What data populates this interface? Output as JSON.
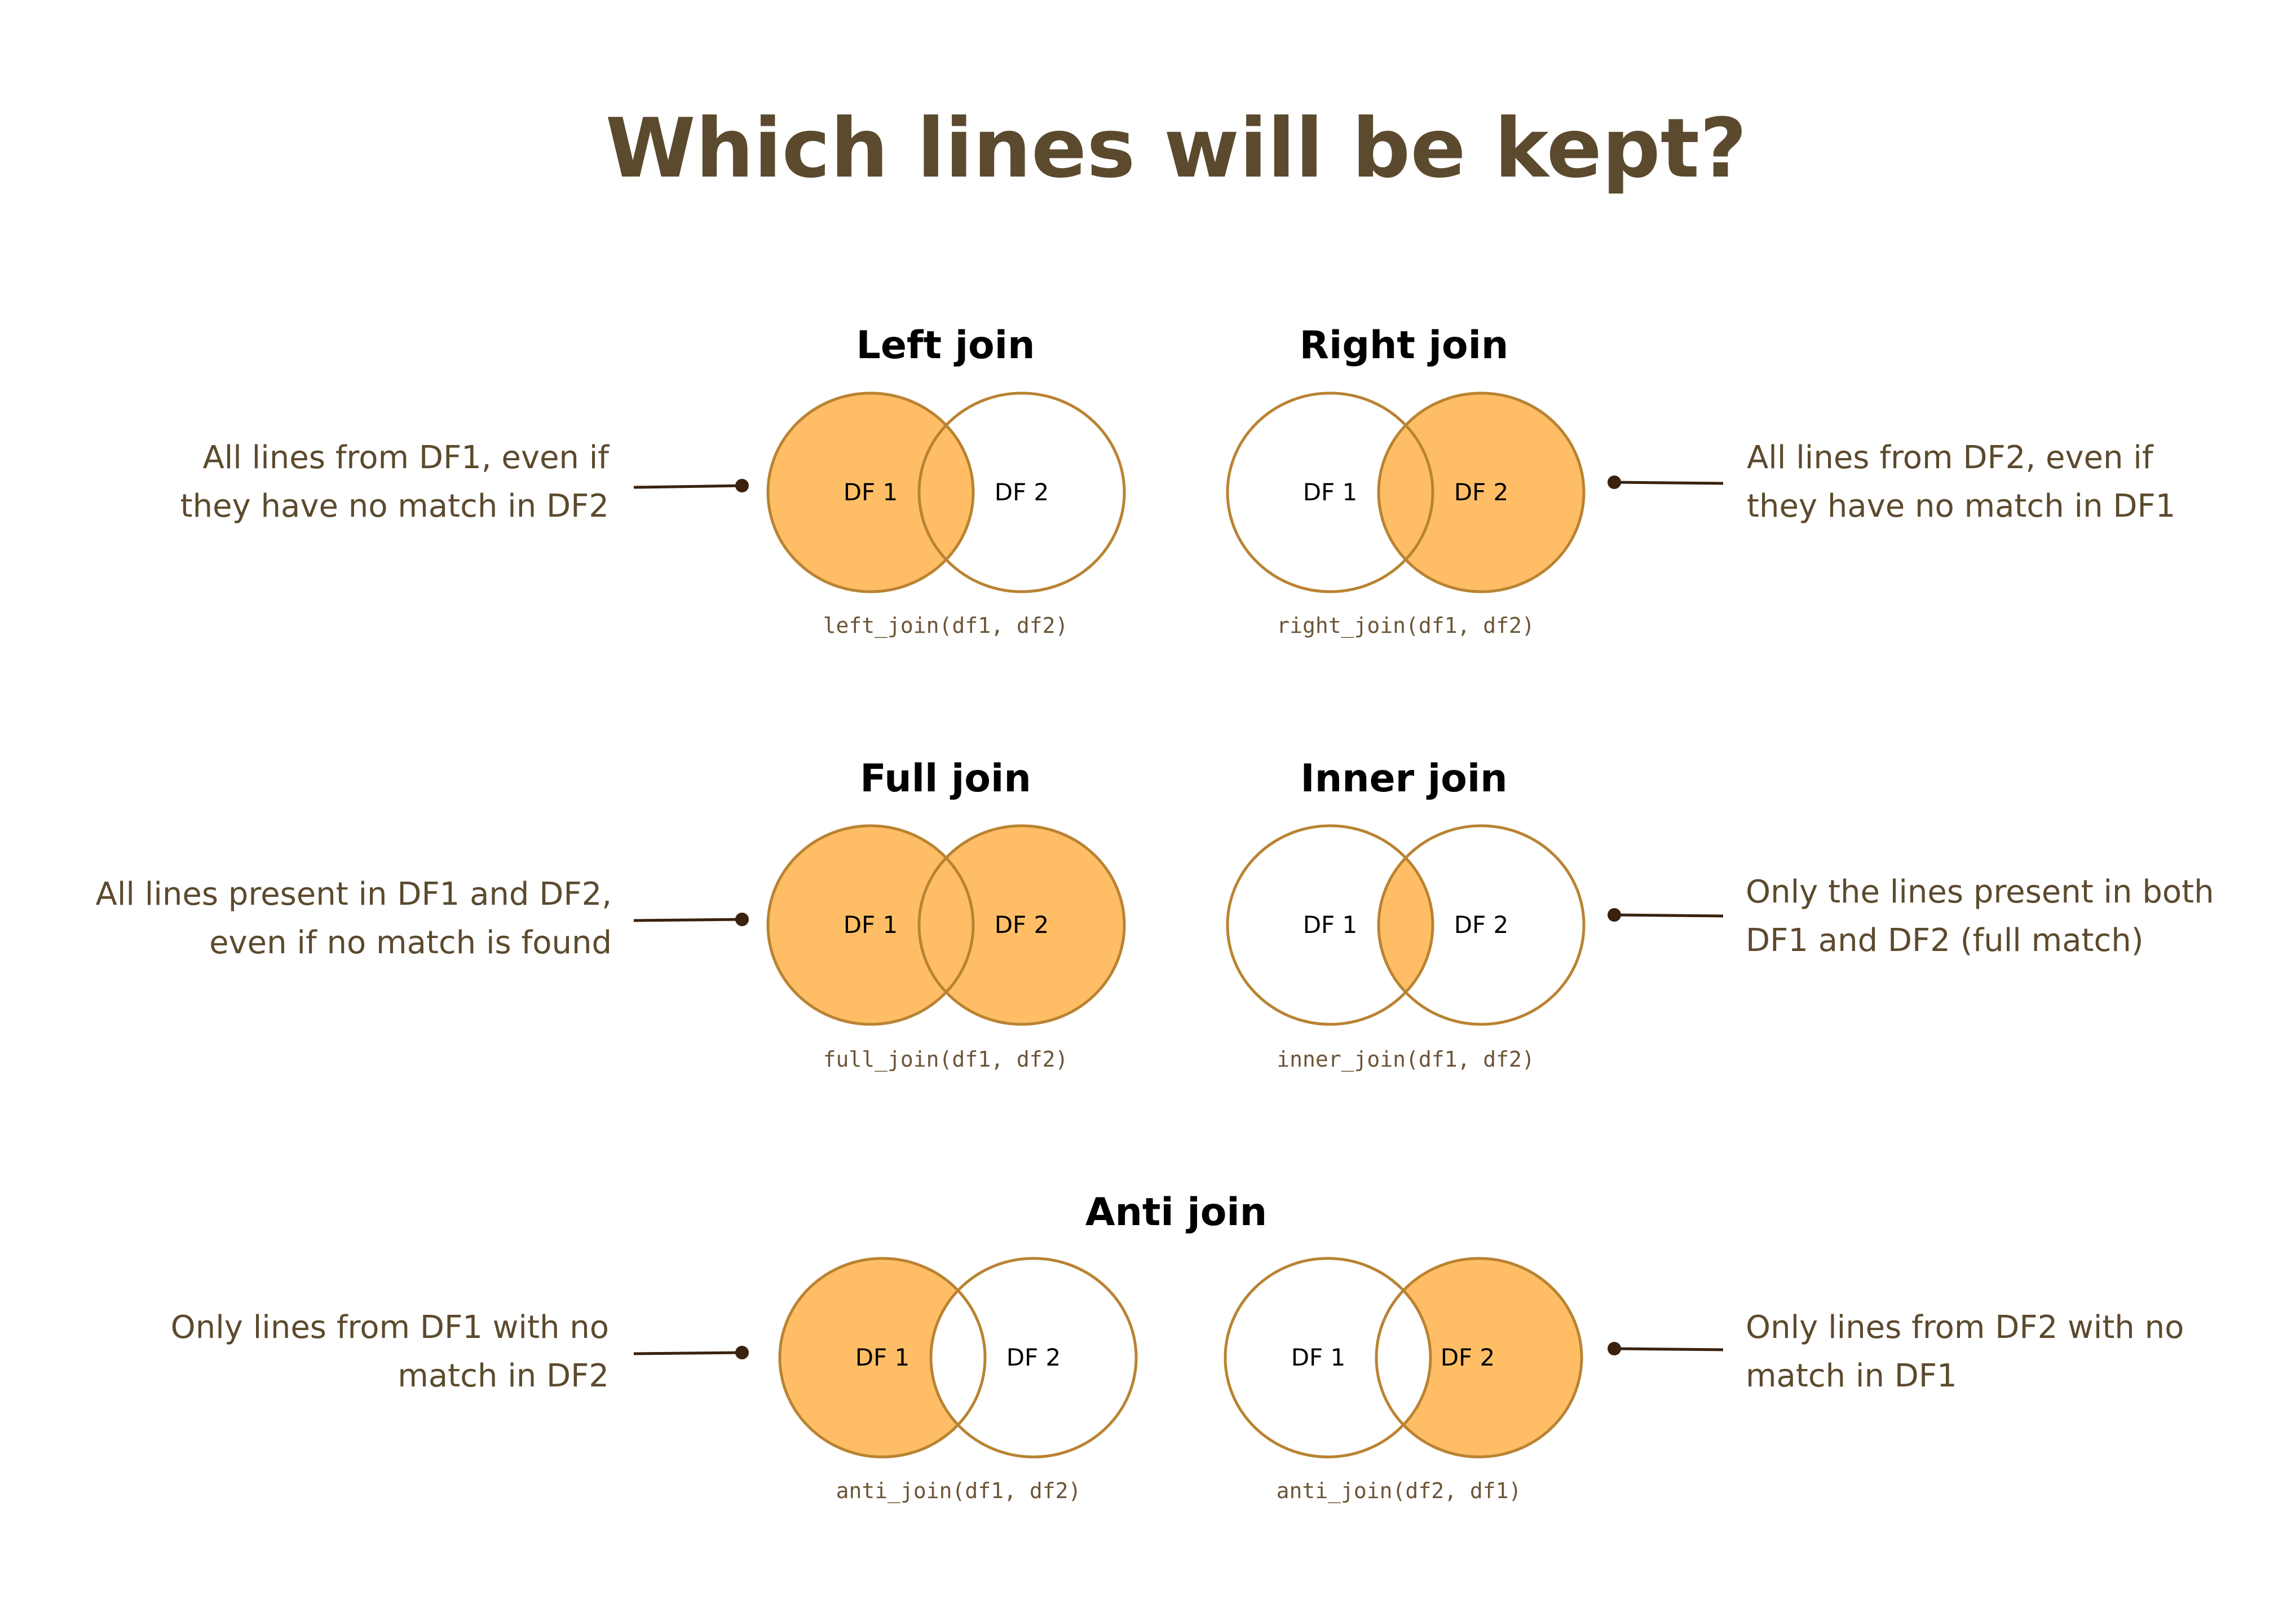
{
  "title": "Which lines will be kept?",
  "colors": {
    "title": "#5c4a2e",
    "description": "#5c4a2e",
    "code": "#6b5536",
    "fill": "#ffbe66",
    "stroke": "#b98332",
    "connector": "#3a220e",
    "panel_title": "#000000"
  },
  "joins": {
    "left": {
      "title": "Left join",
      "df1": "DF 1",
      "df2": "DF 2",
      "code": "left_join(df1, df2)",
      "description": [
        "All lines from DF1, even if",
        "they have no match in DF2"
      ]
    },
    "right": {
      "title": "Right join",
      "df1": "DF 1",
      "df2": "DF 2",
      "code": "right_join(df1, df2)",
      "description": [
        "All lines from DF2, even if",
        "they have no match in DF1"
      ]
    },
    "full": {
      "title": "Full join",
      "df1": "DF 1",
      "df2": "DF 2",
      "code": "full_join(df1, df2)",
      "description": [
        "All lines present in DF1 and DF2,",
        "even if no match is found"
      ]
    },
    "inner": {
      "title": "Inner join",
      "df1": "DF 1",
      "df2": "DF 2",
      "code": "inner_join(df1, df2)",
      "description": [
        "Only the lines present in both",
        "DF1 and DF2 (full match)"
      ]
    },
    "anti": {
      "title": "Anti join",
      "left": {
        "df1": "DF 1",
        "df2": "DF 2",
        "code": "anti_join(df1, df2)",
        "description": [
          "Only lines from DF1 with no",
          "match in DF2"
        ]
      },
      "right": {
        "df1": "DF 1",
        "df2": "DF 2",
        "code": "anti_join(df2, df1)",
        "description": [
          "Only lines from DF2 with no",
          "match in DF1"
        ]
      }
    }
  }
}
